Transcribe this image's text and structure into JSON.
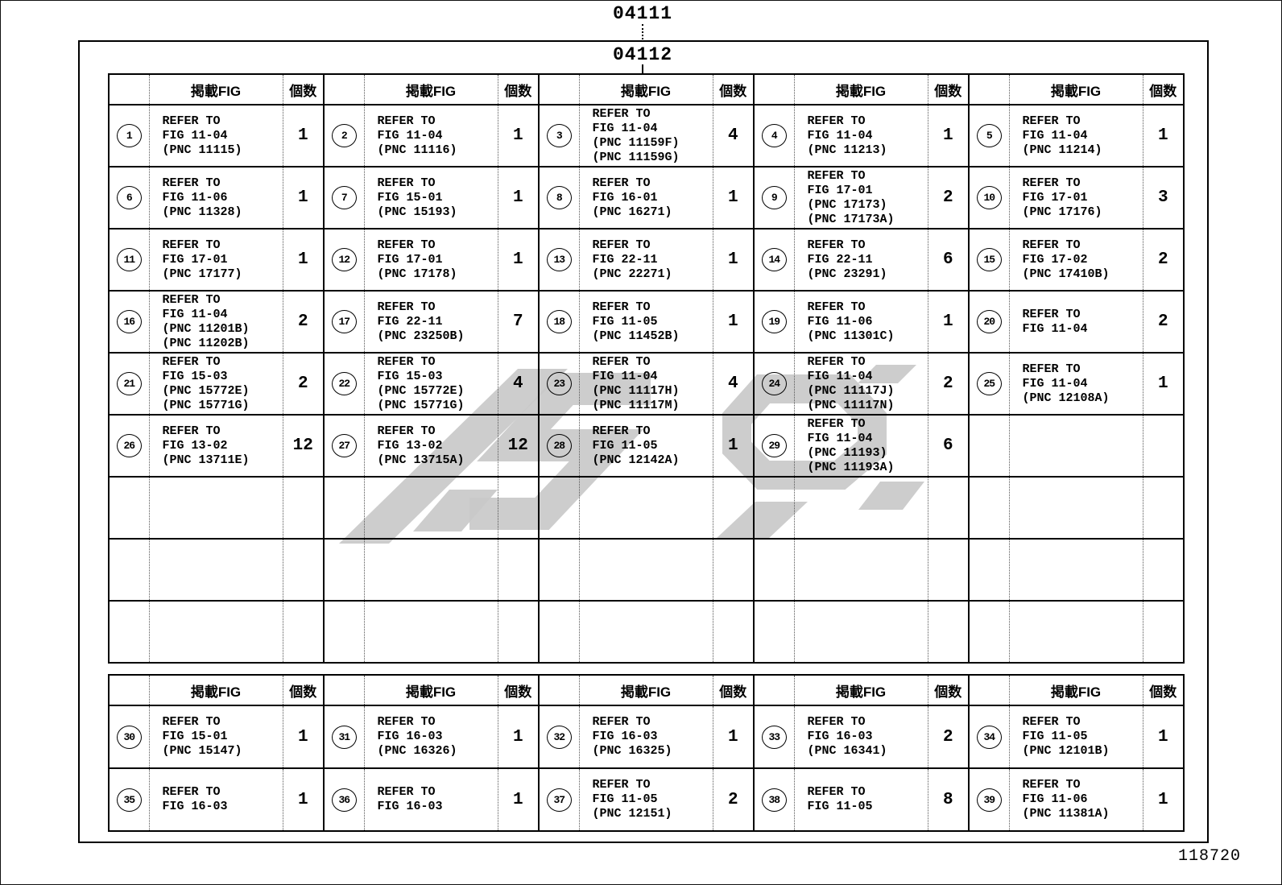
{
  "labels": {
    "top_code": "04111",
    "inner_code": "04112",
    "sheet_number": "118720"
  },
  "columns": {
    "fig_header": "掲載FIG",
    "qty_header": "個数"
  },
  "refer_prefix": "REFER TO",
  "watermark_color": "#c9c9c9",
  "upper_table": {
    "empty_rows": 3,
    "rows": [
      [
        {
          "num": "1",
          "lines": [
            "REFER TO",
            "FIG 11-04",
            "(PNC 11115)"
          ],
          "qty": "1"
        },
        {
          "num": "2",
          "lines": [
            "REFER TO",
            "FIG 11-04",
            "(PNC 11116)"
          ],
          "qty": "1"
        },
        {
          "num": "3",
          "lines": [
            "REFER TO",
            "FIG 11-04",
            "(PNC 11159F)",
            "(PNC 11159G)"
          ],
          "qty": "4"
        },
        {
          "num": "4",
          "lines": [
            "REFER TO",
            "FIG 11-04",
            "(PNC 11213)"
          ],
          "qty": "1"
        },
        {
          "num": "5",
          "lines": [
            "REFER TO",
            "FIG 11-04",
            "(PNC 11214)"
          ],
          "qty": "1"
        }
      ],
      [
        {
          "num": "6",
          "lines": [
            "REFER TO",
            "FIG 11-06",
            "(PNC 11328)"
          ],
          "qty": "1"
        },
        {
          "num": "7",
          "lines": [
            "REFER TO",
            "FIG 15-01",
            "(PNC 15193)"
          ],
          "qty": "1"
        },
        {
          "num": "8",
          "lines": [
            "REFER TO",
            "FIG 16-01",
            "(PNC 16271)"
          ],
          "qty": "1"
        },
        {
          "num": "9",
          "lines": [
            "REFER TO",
            "FIG 17-01",
            "(PNC 17173)",
            "(PNC 17173A)"
          ],
          "qty": "2"
        },
        {
          "num": "10",
          "lines": [
            "REFER TO",
            "FIG 17-01",
            "(PNC 17176)"
          ],
          "qty": "3"
        }
      ],
      [
        {
          "num": "11",
          "lines": [
            "REFER TO",
            "FIG 17-01",
            "(PNC 17177)"
          ],
          "qty": "1"
        },
        {
          "num": "12",
          "lines": [
            "REFER TO",
            "FIG 17-01",
            "(PNC 17178)"
          ],
          "qty": "1"
        },
        {
          "num": "13",
          "lines": [
            "REFER TO",
            "FIG 22-11",
            "(PNC 22271)"
          ],
          "qty": "1"
        },
        {
          "num": "14",
          "lines": [
            "REFER TO",
            "FIG 22-11",
            "(PNC 23291)"
          ],
          "qty": "6"
        },
        {
          "num": "15",
          "lines": [
            "REFER TO",
            "FIG 17-02",
            "(PNC 17410B)"
          ],
          "qty": "2"
        }
      ],
      [
        {
          "num": "16",
          "lines": [
            "REFER TO",
            "FIG 11-04",
            "(PNC 11201B)",
            "(PNC 11202B)"
          ],
          "qty": "2"
        },
        {
          "num": "17",
          "lines": [
            "REFER TO",
            "FIG 22-11",
            "(PNC 23250B)"
          ],
          "qty": "7"
        },
        {
          "num": "18",
          "lines": [
            "REFER TO",
            "FIG 11-05",
            "(PNC 11452B)"
          ],
          "qty": "1"
        },
        {
          "num": "19",
          "lines": [
            "REFER TO",
            "FIG 11-06",
            "(PNC 11301C)"
          ],
          "qty": "1"
        },
        {
          "num": "20",
          "lines": [
            "REFER TO",
            "FIG 11-04"
          ],
          "qty": "2"
        }
      ],
      [
        {
          "num": "21",
          "lines": [
            "REFER TO",
            "FIG 15-03",
            "(PNC 15772E)",
            "(PNC 15771G)"
          ],
          "qty": "2"
        },
        {
          "num": "22",
          "lines": [
            "REFER TO",
            "FIG 15-03",
            "(PNC 15772E)",
            "(PNC 15771G)"
          ],
          "qty": "4"
        },
        {
          "num": "23",
          "lines": [
            "REFER TO",
            "FIG 11-04",
            "(PNC 11117H)",
            "(PNC 11117M)"
          ],
          "qty": "4"
        },
        {
          "num": "24",
          "lines": [
            "REFER TO",
            "FIG 11-04",
            "(PNC 11117J)",
            "(PNC 11117N)"
          ],
          "qty": "2"
        },
        {
          "num": "25",
          "lines": [
            "REFER TO",
            "FIG 11-04",
            "(PNC 12108A)"
          ],
          "qty": "1"
        }
      ],
      [
        {
          "num": "26",
          "lines": [
            "REFER TO",
            "FIG 13-02",
            "(PNC 13711E)"
          ],
          "qty": "12"
        },
        {
          "num": "27",
          "lines": [
            "REFER TO",
            "FIG 13-02",
            "(PNC 13715A)"
          ],
          "qty": "12"
        },
        {
          "num": "28",
          "lines": [
            "REFER TO",
            "FIG 11-05",
            "(PNC 12142A)"
          ],
          "qty": "1"
        },
        {
          "num": "29",
          "lines": [
            "REFER TO",
            "FIG 11-04",
            "(PNC 11193)",
            "(PNC 11193A)"
          ],
          "qty": "6"
        },
        null
      ]
    ]
  },
  "lower_table": {
    "empty_rows": 0,
    "rows": [
      [
        {
          "num": "30",
          "lines": [
            "REFER TO",
            "FIG 15-01",
            "(PNC 15147)"
          ],
          "qty": "1"
        },
        {
          "num": "31",
          "lines": [
            "REFER TO",
            "FIG 16-03",
            "(PNC 16326)"
          ],
          "qty": "1"
        },
        {
          "num": "32",
          "lines": [
            "REFER TO",
            "FIG 16-03",
            "(PNC 16325)"
          ],
          "qty": "1"
        },
        {
          "num": "33",
          "lines": [
            "REFER TO",
            "FIG 16-03",
            "(PNC 16341)"
          ],
          "qty": "2"
        },
        {
          "num": "34",
          "lines": [
            "REFER TO",
            "FIG 11-05",
            "(PNC 12101B)"
          ],
          "qty": "1"
        }
      ],
      [
        {
          "num": "35",
          "lines": [
            "REFER TO",
            "FIG 16-03"
          ],
          "qty": "1"
        },
        {
          "num": "36",
          "lines": [
            "REFER TO",
            "FIG 16-03"
          ],
          "qty": "1"
        },
        {
          "num": "37",
          "lines": [
            "REFER TO",
            "FIG 11-05",
            "(PNC 12151)"
          ],
          "qty": "2"
        },
        {
          "num": "38",
          "lines": [
            "REFER TO",
            "FIG 11-05"
          ],
          "qty": "8"
        },
        {
          "num": "39",
          "lines": [
            "REFER TO",
            "FIG 11-06",
            "(PNC 11381A)"
          ],
          "qty": "1"
        }
      ]
    ]
  }
}
